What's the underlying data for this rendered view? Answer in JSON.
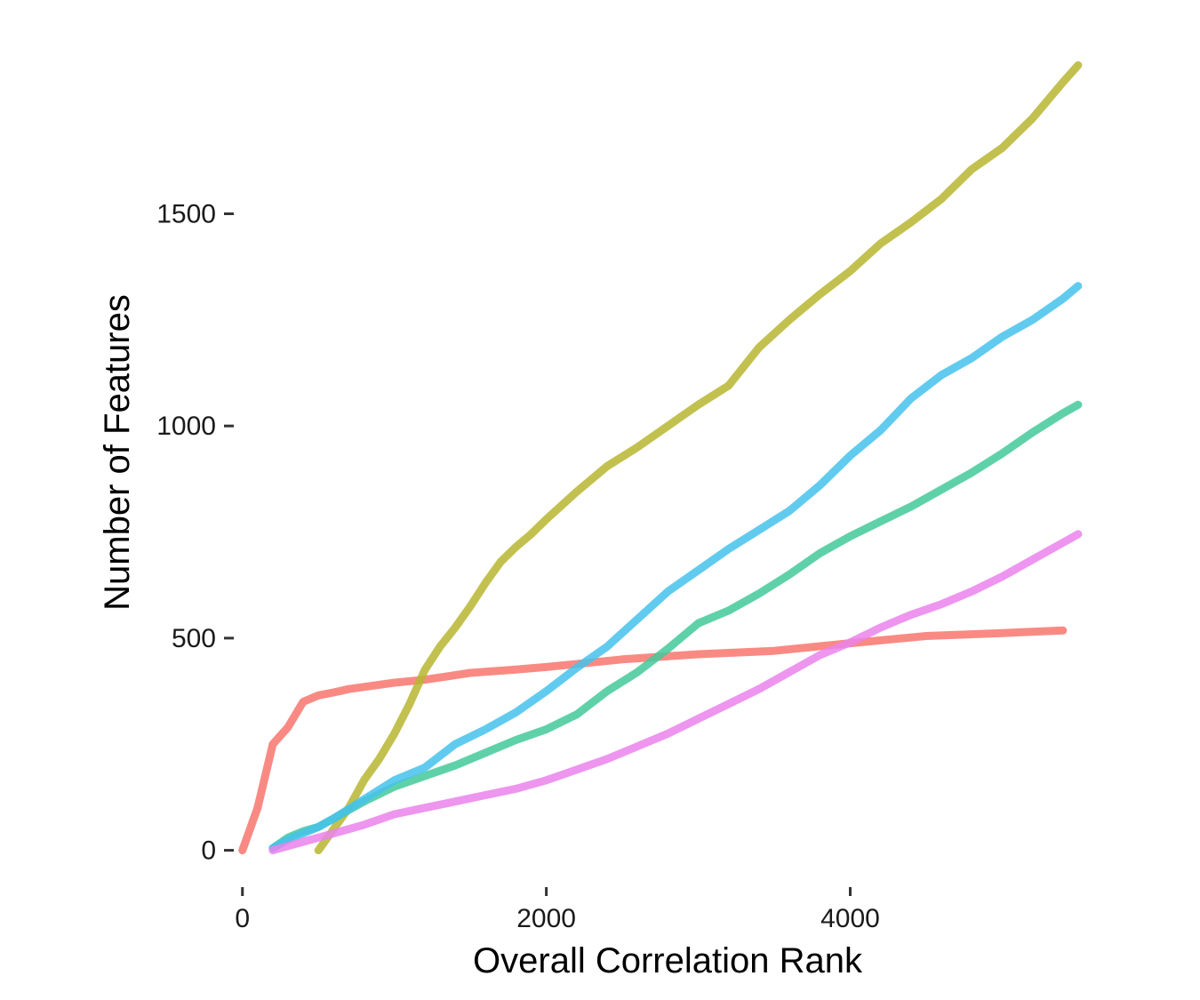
{
  "chart_data": {
    "type": "line",
    "title": "",
    "xlabel": "Overall Correlation Rank",
    "ylabel": "Number of Features",
    "xlim": [
      -250,
      5600
    ],
    "ylim": [
      -70,
      1920
    ],
    "xticks": [
      0,
      2000,
      4000
    ],
    "yticks": [
      0,
      500,
      1000,
      1500
    ],
    "grid": false,
    "legend": "none",
    "series": [
      {
        "color": "#f8766d",
        "x": [
          0,
          100,
          200,
          300,
          400,
          500,
          600,
          700,
          800,
          1000,
          1200,
          1500,
          1800,
          2000,
          2500,
          3000,
          3500,
          4000,
          4500,
          5000,
          5400
        ],
        "y": [
          0,
          100,
          250,
          290,
          350,
          365,
          372,
          380,
          385,
          395,
          402,
          418,
          426,
          432,
          450,
          462,
          470,
          488,
          505,
          512,
          518
        ]
      },
      {
        "color": "#b7b630",
        "x": [
          500,
          600,
          700,
          800,
          900,
          1000,
          1100,
          1200,
          1300,
          1400,
          1500,
          1600,
          1700,
          1800,
          1900,
          2000,
          2200,
          2400,
          2600,
          2800,
          3000,
          3200,
          3400,
          3600,
          3800,
          4000,
          4200,
          4400,
          4600,
          4800,
          5000,
          5200,
          5400,
          5500
        ],
        "y": [
          0,
          50,
          100,
          165,
          215,
          275,
          345,
          425,
          480,
          525,
          575,
          630,
          680,
          715,
          745,
          780,
          845,
          905,
          950,
          1000,
          1050,
          1095,
          1185,
          1250,
          1310,
          1365,
          1430,
          1480,
          1535,
          1605,
          1655,
          1725,
          1810,
          1850
        ]
      },
      {
        "color": "#43c99a",
        "x": [
          200,
          300,
          400,
          500,
          600,
          800,
          1000,
          1200,
          1400,
          1600,
          1800,
          2000,
          2200,
          2400,
          2600,
          2800,
          3000,
          3200,
          3400,
          3600,
          3800,
          4000,
          4200,
          4400,
          4600,
          4800,
          5000,
          5200,
          5400,
          5500
        ],
        "y": [
          5,
          30,
          45,
          55,
          75,
          115,
          150,
          175,
          200,
          230,
          260,
          285,
          320,
          375,
          420,
          475,
          535,
          565,
          605,
          650,
          700,
          740,
          775,
          810,
          850,
          890,
          935,
          985,
          1030,
          1050
        ]
      },
      {
        "color": "#45c2ec",
        "x": [
          200,
          300,
          400,
          500,
          600,
          800,
          1000,
          1200,
          1400,
          1600,
          1800,
          2000,
          2200,
          2400,
          2600,
          2800,
          3000,
          3200,
          3400,
          3600,
          3800,
          4000,
          4200,
          4400,
          4600,
          4800,
          5000,
          5200,
          5400,
          5500
        ],
        "y": [
          5,
          25,
          40,
          55,
          75,
          120,
          165,
          195,
          250,
          285,
          325,
          375,
          430,
          480,
          545,
          610,
          660,
          710,
          755,
          800,
          860,
          930,
          990,
          1065,
          1120,
          1160,
          1210,
          1250,
          1300,
          1330
        ]
      },
      {
        "color": "#ea82ec",
        "x": [
          200,
          300,
          400,
          500,
          600,
          800,
          1000,
          1200,
          1400,
          1600,
          1800,
          2000,
          2200,
          2400,
          2600,
          2800,
          3000,
          3200,
          3400,
          3600,
          3800,
          4000,
          4200,
          4400,
          4600,
          4800,
          5000,
          5200,
          5400,
          5500
        ],
        "y": [
          0,
          10,
          20,
          30,
          40,
          60,
          85,
          100,
          115,
          130,
          145,
          165,
          190,
          215,
          245,
          275,
          310,
          345,
          380,
          420,
          460,
          490,
          525,
          555,
          580,
          610,
          645,
          685,
          725,
          745
        ]
      }
    ]
  }
}
